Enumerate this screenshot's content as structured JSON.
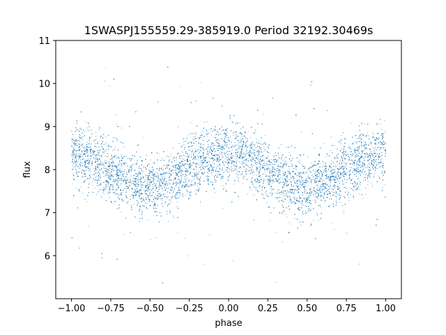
{
  "chart_data": {
    "type": "scatter",
    "title": "1SWASPJ155559.29-385919.0 Period 32192.30469s",
    "xlabel": "phase",
    "ylabel": "flux",
    "xlim": [
      -1.1,
      1.1
    ],
    "ylim": [
      5.0,
      11.0
    ],
    "xticks": [
      -1.0,
      -0.75,
      -0.5,
      -0.25,
      0.0,
      0.25,
      0.5,
      0.75,
      1.0
    ],
    "xtick_labels": [
      "−1.00",
      "−0.75",
      "−0.50",
      "−0.25",
      "0.00",
      "0.25",
      "0.50",
      "0.75",
      "1.00"
    ],
    "yticks": [
      6,
      7,
      8,
      9,
      10,
      11
    ],
    "ytick_labels": [
      "6",
      "7",
      "8",
      "9",
      "10",
      "11"
    ],
    "grid": false,
    "legend": "none",
    "marker_color": "#1f77b4",
    "series": [
      {
        "phase_range": [
          -1.0,
          1.0
        ],
        "approx_point_count": 16000,
        "trend_phase": [
          -1.0,
          -0.9,
          -0.8,
          -0.7,
          -0.6,
          -0.5,
          -0.45,
          -0.4,
          -0.3,
          -0.2,
          -0.1,
          0.0,
          0.1,
          0.2,
          0.3,
          0.4,
          0.45,
          0.5,
          0.6,
          0.7,
          0.8,
          0.9,
          1.0
        ],
        "trend_flux": [
          8.3,
          8.3,
          8.05,
          7.85,
          7.7,
          7.55,
          7.55,
          7.65,
          7.9,
          8.15,
          8.3,
          8.4,
          8.3,
          8.1,
          7.9,
          7.65,
          7.55,
          7.55,
          7.7,
          7.9,
          8.1,
          8.3,
          8.4
        ],
        "scatter_sigma": 0.35
      }
    ]
  }
}
